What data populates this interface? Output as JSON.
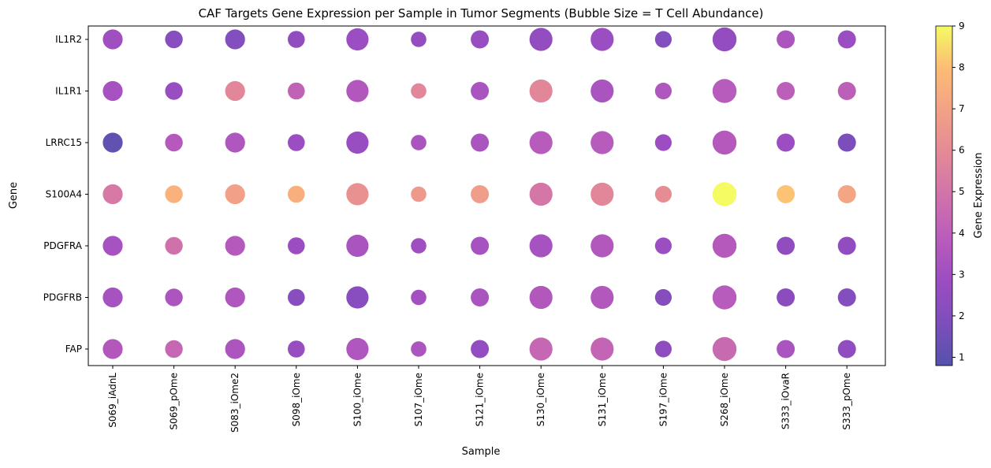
{
  "chart_data": {
    "type": "scatter",
    "title": "CAF Targets Gene Expression per Sample in Tumor Segments (Bubble Size = T Cell Abundance)",
    "xlabel": "Sample",
    "ylabel": "Gene",
    "samples": [
      "S069_iAdnL",
      "S069_pOme",
      "S083_iOme2",
      "S098_iOme",
      "S100_iOme",
      "S107_iOme",
      "S121_iOme",
      "S130_iOme",
      "S131_iOme",
      "S197_iOme",
      "S268_iOme",
      "S333_iOvaR",
      "S333_pOme"
    ],
    "genes_top_to_bottom": [
      "IL1R2",
      "IL1R1",
      "LRRC15",
      "S100A4",
      "PDGFRA",
      "PDGFRB",
      "FAP"
    ],
    "bubble_size_legend": "T Cell Abundance",
    "relative_tcell_abundance": [
      0.7,
      0.55,
      0.7,
      0.5,
      0.85,
      0.4,
      0.58,
      0.9,
      0.9,
      0.48,
      0.97,
      0.58,
      0.58
    ],
    "expression": [
      [
        3.0,
        2.2,
        2.0,
        2.5,
        2.8,
        2.6,
        2.7,
        2.6,
        2.8,
        2.0,
        2.6,
        3.4,
        2.8
      ],
      [
        3.2,
        2.7,
        5.8,
        4.2,
        3.6,
        5.8,
        3.3,
        5.8,
        3.3,
        3.5,
        3.8,
        4.0,
        4.0
      ],
      [
        1.1,
        3.7,
        3.5,
        2.8,
        2.7,
        3.3,
        3.3,
        3.8,
        3.8,
        2.9,
        3.7,
        2.9,
        1.8
      ],
      [
        5.2,
        7.6,
        6.9,
        7.5,
        6.3,
        6.6,
        6.8,
        5.1,
        5.8,
        6.1,
        9.0,
        8.1,
        7.1
      ],
      [
        3.2,
        4.8,
        3.7,
        2.9,
        3.3,
        3.0,
        3.2,
        3.2,
        3.6,
        2.8,
        3.7,
        2.5,
        2.5
      ],
      [
        3.2,
        3.4,
        3.5,
        2.2,
        2.2,
        3.1,
        3.3,
        3.6,
        3.6,
        2.1,
        3.8,
        2.3,
        2.0
      ],
      [
        3.6,
        4.4,
        3.4,
        2.7,
        3.5,
        3.4,
        2.6,
        4.4,
        4.3,
        2.4,
        4.5,
        3.3,
        2.4
      ]
    ],
    "colorbar": {
      "label": "Gene Expression",
      "min": 0.8,
      "max": 9.0,
      "ticks": [
        1,
        2,
        3,
        4,
        5,
        6,
        7,
        8,
        9
      ],
      "colormap": "plasma"
    },
    "marker_alpha": 0.7,
    "grid": false
  }
}
